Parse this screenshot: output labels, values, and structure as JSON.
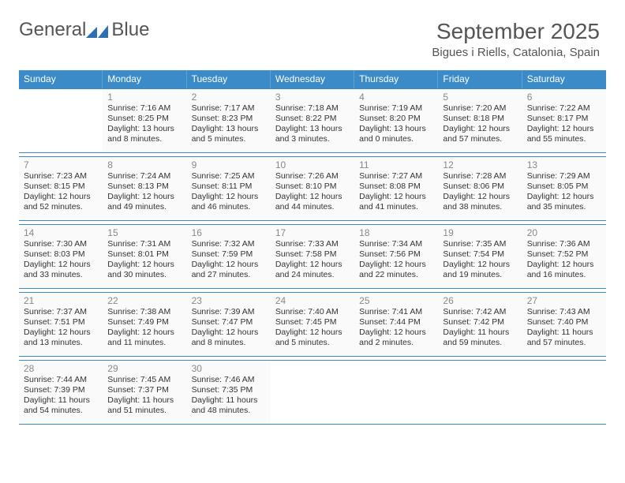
{
  "brand": {
    "word1": "General",
    "word2": "Blue"
  },
  "colors": {
    "header_bg": "#3b8bc9",
    "accent": "#2c6fb5",
    "rule": "#3b8bc9",
    "text": "#333333"
  },
  "title": "September 2025",
  "location": "Bigues i Riells, Catalonia, Spain",
  "weekdays": [
    "Sunday",
    "Monday",
    "Tuesday",
    "Wednesday",
    "Thursday",
    "Friday",
    "Saturday"
  ],
  "weeks": [
    [
      null,
      {
        "n": "1",
        "sr": "Sunrise: 7:16 AM",
        "ss": "Sunset: 8:25 PM",
        "dl": "Daylight: 13 hours and 8 minutes."
      },
      {
        "n": "2",
        "sr": "Sunrise: 7:17 AM",
        "ss": "Sunset: 8:23 PM",
        "dl": "Daylight: 13 hours and 5 minutes."
      },
      {
        "n": "3",
        "sr": "Sunrise: 7:18 AM",
        "ss": "Sunset: 8:22 PM",
        "dl": "Daylight: 13 hours and 3 minutes."
      },
      {
        "n": "4",
        "sr": "Sunrise: 7:19 AM",
        "ss": "Sunset: 8:20 PM",
        "dl": "Daylight: 13 hours and 0 minutes."
      },
      {
        "n": "5",
        "sr": "Sunrise: 7:20 AM",
        "ss": "Sunset: 8:18 PM",
        "dl": "Daylight: 12 hours and 57 minutes."
      },
      {
        "n": "6",
        "sr": "Sunrise: 7:22 AM",
        "ss": "Sunset: 8:17 PM",
        "dl": "Daylight: 12 hours and 55 minutes."
      }
    ],
    [
      {
        "n": "7",
        "sr": "Sunrise: 7:23 AM",
        "ss": "Sunset: 8:15 PM",
        "dl": "Daylight: 12 hours and 52 minutes."
      },
      {
        "n": "8",
        "sr": "Sunrise: 7:24 AM",
        "ss": "Sunset: 8:13 PM",
        "dl": "Daylight: 12 hours and 49 minutes."
      },
      {
        "n": "9",
        "sr": "Sunrise: 7:25 AM",
        "ss": "Sunset: 8:11 PM",
        "dl": "Daylight: 12 hours and 46 minutes."
      },
      {
        "n": "10",
        "sr": "Sunrise: 7:26 AM",
        "ss": "Sunset: 8:10 PM",
        "dl": "Daylight: 12 hours and 44 minutes."
      },
      {
        "n": "11",
        "sr": "Sunrise: 7:27 AM",
        "ss": "Sunset: 8:08 PM",
        "dl": "Daylight: 12 hours and 41 minutes."
      },
      {
        "n": "12",
        "sr": "Sunrise: 7:28 AM",
        "ss": "Sunset: 8:06 PM",
        "dl": "Daylight: 12 hours and 38 minutes."
      },
      {
        "n": "13",
        "sr": "Sunrise: 7:29 AM",
        "ss": "Sunset: 8:05 PM",
        "dl": "Daylight: 12 hours and 35 minutes."
      }
    ],
    [
      {
        "n": "14",
        "sr": "Sunrise: 7:30 AM",
        "ss": "Sunset: 8:03 PM",
        "dl": "Daylight: 12 hours and 33 minutes."
      },
      {
        "n": "15",
        "sr": "Sunrise: 7:31 AM",
        "ss": "Sunset: 8:01 PM",
        "dl": "Daylight: 12 hours and 30 minutes."
      },
      {
        "n": "16",
        "sr": "Sunrise: 7:32 AM",
        "ss": "Sunset: 7:59 PM",
        "dl": "Daylight: 12 hours and 27 minutes."
      },
      {
        "n": "17",
        "sr": "Sunrise: 7:33 AM",
        "ss": "Sunset: 7:58 PM",
        "dl": "Daylight: 12 hours and 24 minutes."
      },
      {
        "n": "18",
        "sr": "Sunrise: 7:34 AM",
        "ss": "Sunset: 7:56 PM",
        "dl": "Daylight: 12 hours and 22 minutes."
      },
      {
        "n": "19",
        "sr": "Sunrise: 7:35 AM",
        "ss": "Sunset: 7:54 PM",
        "dl": "Daylight: 12 hours and 19 minutes."
      },
      {
        "n": "20",
        "sr": "Sunrise: 7:36 AM",
        "ss": "Sunset: 7:52 PM",
        "dl": "Daylight: 12 hours and 16 minutes."
      }
    ],
    [
      {
        "n": "21",
        "sr": "Sunrise: 7:37 AM",
        "ss": "Sunset: 7:51 PM",
        "dl": "Daylight: 12 hours and 13 minutes."
      },
      {
        "n": "22",
        "sr": "Sunrise: 7:38 AM",
        "ss": "Sunset: 7:49 PM",
        "dl": "Daylight: 12 hours and 11 minutes."
      },
      {
        "n": "23",
        "sr": "Sunrise: 7:39 AM",
        "ss": "Sunset: 7:47 PM",
        "dl": "Daylight: 12 hours and 8 minutes."
      },
      {
        "n": "24",
        "sr": "Sunrise: 7:40 AM",
        "ss": "Sunset: 7:45 PM",
        "dl": "Daylight: 12 hours and 5 minutes."
      },
      {
        "n": "25",
        "sr": "Sunrise: 7:41 AM",
        "ss": "Sunset: 7:44 PM",
        "dl": "Daylight: 12 hours and 2 minutes."
      },
      {
        "n": "26",
        "sr": "Sunrise: 7:42 AM",
        "ss": "Sunset: 7:42 PM",
        "dl": "Daylight: 11 hours and 59 minutes."
      },
      {
        "n": "27",
        "sr": "Sunrise: 7:43 AM",
        "ss": "Sunset: 7:40 PM",
        "dl": "Daylight: 11 hours and 57 minutes."
      }
    ],
    [
      {
        "n": "28",
        "sr": "Sunrise: 7:44 AM",
        "ss": "Sunset: 7:39 PM",
        "dl": "Daylight: 11 hours and 54 minutes."
      },
      {
        "n": "29",
        "sr": "Sunrise: 7:45 AM",
        "ss": "Sunset: 7:37 PM",
        "dl": "Daylight: 11 hours and 51 minutes."
      },
      {
        "n": "30",
        "sr": "Sunrise: 7:46 AM",
        "ss": "Sunset: 7:35 PM",
        "dl": "Daylight: 11 hours and 48 minutes."
      },
      null,
      null,
      null,
      null
    ]
  ]
}
